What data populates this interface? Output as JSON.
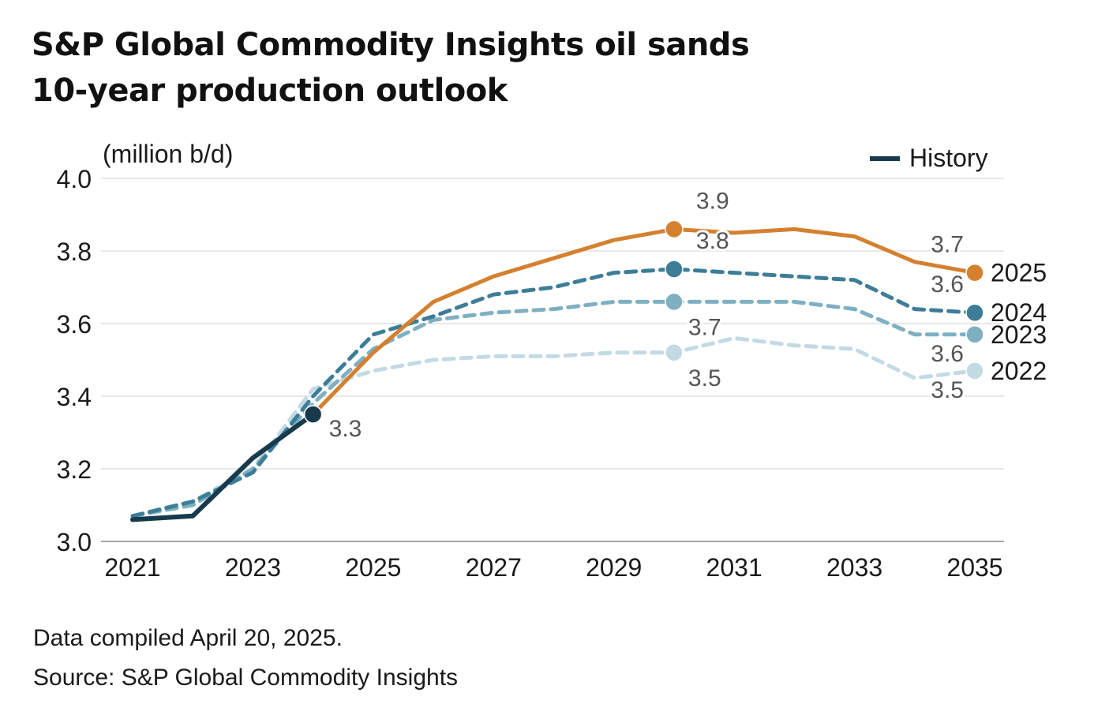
{
  "title": {
    "line1": "S&P Global Commodity Insights oil sands",
    "line2": "10-year production outlook"
  },
  "footer": {
    "compiled": "Data compiled April 20, 2025.",
    "source": "Source: S&P Global Commodity Insights"
  },
  "colors": {
    "history": "#173a4d",
    "s2025": "#d4802f",
    "s2024": "#3d7d97",
    "s2023": "#7fb0c2",
    "s2022": "#c3dae3",
    "grid": "#d9d9d9",
    "label": "#555555"
  },
  "chart_data": {
    "type": "line",
    "ylabel": "(million b/d)",
    "ylim": [
      3.0,
      4.0
    ],
    "yticks": [
      "3.0",
      "3.2",
      "3.4",
      "3.6",
      "3.8",
      "4.0"
    ],
    "xlim": [
      2021,
      2035
    ],
    "xticks": [
      "2021",
      "2023",
      "2025",
      "2027",
      "2029",
      "2031",
      "2033",
      "2035"
    ],
    "legend": {
      "label": "History",
      "position": "top-right"
    },
    "series": [
      {
        "key": "s2022",
        "name": "2022",
        "style": "dashed",
        "x": [
          2021,
          2022,
          2023,
          2024,
          2025,
          2026,
          2027,
          2028,
          2029,
          2030,
          2031,
          2032,
          2033,
          2034,
          2035
        ],
        "y": [
          3.07,
          3.11,
          3.2,
          3.42,
          3.47,
          3.5,
          3.51,
          3.51,
          3.52,
          3.52,
          3.56,
          3.54,
          3.53,
          3.45,
          3.47
        ],
        "markers": [
          {
            "x": 2030,
            "y": 3.52,
            "label": "3.5",
            "labelPos": "below"
          },
          {
            "x": 2035,
            "y": 3.47,
            "label": "3.5",
            "labelPos": "below-left"
          }
        ]
      },
      {
        "key": "s2023",
        "name": "2023",
        "style": "dashed",
        "x": [
          2021,
          2022,
          2023,
          2024,
          2025,
          2026,
          2027,
          2028,
          2029,
          2030,
          2031,
          2032,
          2033,
          2034,
          2035
        ],
        "y": [
          3.07,
          3.1,
          3.2,
          3.38,
          3.53,
          3.61,
          3.63,
          3.64,
          3.66,
          3.66,
          3.66,
          3.66,
          3.64,
          3.57,
          3.57
        ],
        "markers": [
          {
            "x": 2030,
            "y": 3.66,
            "label": "3.7",
            "labelPos": "below"
          },
          {
            "x": 2035,
            "y": 3.57,
            "label": "3.6",
            "labelPos": "below-left"
          }
        ]
      },
      {
        "key": "s2024",
        "name": "2024",
        "style": "dashed",
        "x": [
          2021,
          2022,
          2023,
          2024,
          2025,
          2026,
          2027,
          2028,
          2029,
          2030,
          2031,
          2032,
          2033,
          2034,
          2035
        ],
        "y": [
          3.07,
          3.11,
          3.19,
          3.4,
          3.57,
          3.62,
          3.68,
          3.7,
          3.74,
          3.75,
          3.74,
          3.73,
          3.72,
          3.64,
          3.63
        ],
        "markers": [
          {
            "x": 2030,
            "y": 3.75,
            "label": "3.8",
            "labelPos": "above"
          },
          {
            "x": 2035,
            "y": 3.63,
            "label": "3.6",
            "labelPos": "above-left"
          }
        ]
      },
      {
        "key": "s2025",
        "name": "2025",
        "style": "solid",
        "x": [
          2021,
          2022,
          2023,
          2024,
          2025,
          2026,
          2027,
          2028,
          2029,
          2030,
          2031,
          2032,
          2033,
          2034,
          2035
        ],
        "y": [
          3.06,
          3.07,
          3.23,
          3.35,
          3.52,
          3.66,
          3.73,
          3.78,
          3.83,
          3.86,
          3.85,
          3.86,
          3.84,
          3.77,
          3.74
        ],
        "markers": [
          {
            "x": 2030,
            "y": 3.86,
            "label": "3.9",
            "labelPos": "above"
          },
          {
            "x": 2035,
            "y": 3.74,
            "label": "3.7",
            "labelPos": "above-left"
          }
        ]
      },
      {
        "key": "history",
        "name": "History",
        "style": "solid",
        "x": [
          2021,
          2022,
          2023,
          2024
        ],
        "y": [
          3.06,
          3.07,
          3.23,
          3.35
        ],
        "markers": [
          {
            "x": 2024,
            "y": 3.35,
            "label": "3.3",
            "labelPos": "below-right"
          }
        ]
      }
    ]
  }
}
